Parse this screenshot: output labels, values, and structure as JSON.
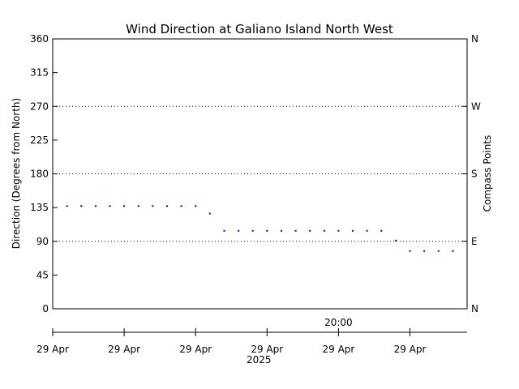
{
  "chart_data": {
    "type": "scatter",
    "title": "Wind Direction at Galiano Island North West",
    "ylabel": "Direction (Degrees from North)",
    "ylabel_right": "Compass Points",
    "ylim": [
      0,
      360
    ],
    "yticks": [
      0,
      45,
      90,
      135,
      180,
      225,
      270,
      315,
      360
    ],
    "right_ticks": [
      {
        "value": 0,
        "label": "N"
      },
      {
        "value": 90,
        "label": "E"
      },
      {
        "value": 180,
        "label": "S"
      },
      {
        "value": 270,
        "label": "W"
      },
      {
        "value": 360,
        "label": "N"
      }
    ],
    "gridlines": [
      90,
      180,
      270
    ],
    "grid_style": "dotted",
    "x_minutes_range": [
      0,
      290
    ],
    "xticks": [
      {
        "minute": 0,
        "label": "29 Apr"
      },
      {
        "minute": 50,
        "label": "29 Apr"
      },
      {
        "minute": 100,
        "label": "29 Apr"
      },
      {
        "minute": 150,
        "label": "29 Apr"
      },
      {
        "minute": 200,
        "label": "29 Apr"
      },
      {
        "minute": 250,
        "label": "29 Apr"
      }
    ],
    "x_top_label": {
      "minute": 200,
      "label": "20:00"
    },
    "x_year_label": "2025",
    "series": [
      {
        "color": "#0000ff",
        "points": [
          {
            "x": 10,
            "y": 137
          },
          {
            "x": 20,
            "y": 137
          },
          {
            "x": 30,
            "y": 137
          },
          {
            "x": 40,
            "y": 137
          },
          {
            "x": 50,
            "y": 137
          },
          {
            "x": 60,
            "y": 137
          },
          {
            "x": 70,
            "y": 137
          },
          {
            "x": 80,
            "y": 137
          },
          {
            "x": 90,
            "y": 137
          },
          {
            "x": 100,
            "y": 137
          },
          {
            "x": 110,
            "y": 127
          },
          {
            "x": 120,
            "y": 104
          },
          {
            "x": 130,
            "y": 104
          },
          {
            "x": 140,
            "y": 104
          },
          {
            "x": 150,
            "y": 104
          },
          {
            "x": 160,
            "y": 104
          },
          {
            "x": 170,
            "y": 104
          },
          {
            "x": 180,
            "y": 104
          },
          {
            "x": 190,
            "y": 104
          },
          {
            "x": 200,
            "y": 104
          },
          {
            "x": 210,
            "y": 104
          },
          {
            "x": 220,
            "y": 104
          },
          {
            "x": 230,
            "y": 104
          },
          {
            "x": 240,
            "y": 91
          },
          {
            "x": 250,
            "y": 77
          },
          {
            "x": 260,
            "y": 77
          },
          {
            "x": 270,
            "y": 77
          },
          {
            "x": 280,
            "y": 77
          }
        ]
      }
    ]
  }
}
